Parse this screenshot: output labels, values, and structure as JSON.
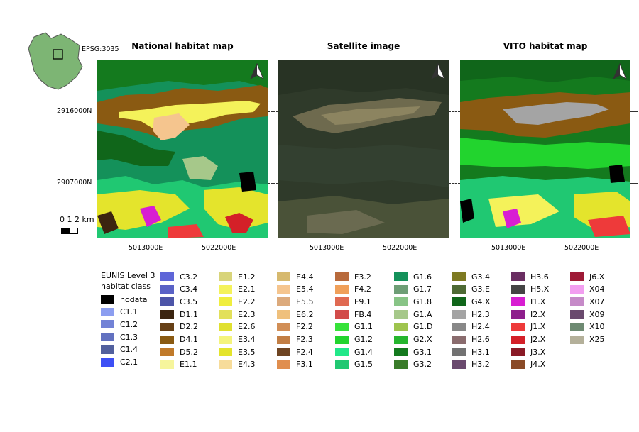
{
  "inset": {
    "epsg": "EPSG:3035"
  },
  "panels": [
    {
      "title": "National habitat map"
    },
    {
      "title": "Satellite image"
    },
    {
      "title": "VITO habitat map"
    }
  ],
  "y_ticks": [
    "2916000N",
    "2907000N"
  ],
  "x_ticks": [
    "5013000E",
    "5022000E"
  ],
  "scalebar": {
    "label": "0 1 2 km"
  },
  "legend": {
    "title_lines": [
      "EUNIS Level 3",
      "habitat class"
    ],
    "columns": [
      [
        {
          "code": "nodata",
          "color": "#000000"
        },
        {
          "code": "C1.1",
          "color": "#8c9ef0"
        },
        {
          "code": "C1.2",
          "color": "#7282d6"
        },
        {
          "code": "C1.3",
          "color": "#6271c0"
        },
        {
          "code": "C1.4",
          "color": "#52609e"
        },
        {
          "code": "C2.1",
          "color": "#3d4ff5"
        }
      ],
      [
        {
          "code": "C3.2",
          "color": "#5f66d8"
        },
        {
          "code": "C3.4",
          "color": "#5a62c6"
        },
        {
          "code": "C3.5",
          "color": "#4d55a8"
        },
        {
          "code": "D1.1",
          "color": "#3b2410"
        },
        {
          "code": "D2.2",
          "color": "#664016"
        },
        {
          "code": "D4.1",
          "color": "#8a5a12"
        },
        {
          "code": "D5.2",
          "color": "#c07a2a"
        },
        {
          "code": "E1.1",
          "color": "#f6f59c"
        }
      ],
      [
        {
          "code": "E1.2",
          "color": "#d8d47a"
        },
        {
          "code": "E2.1",
          "color": "#f4f25a"
        },
        {
          "code": "E2.2",
          "color": "#f0ee3e"
        },
        {
          "code": "E2.3",
          "color": "#e2e05a"
        },
        {
          "code": "E2.6",
          "color": "#e0e030"
        },
        {
          "code": "E3.4",
          "color": "#f4f47c"
        },
        {
          "code": "E3.5",
          "color": "#e4e42c"
        },
        {
          "code": "E4.3",
          "color": "#f7dc9a"
        }
      ],
      [
        {
          "code": "E4.4",
          "color": "#d6b96e"
        },
        {
          "code": "E5.4",
          "color": "#f5c58e"
        },
        {
          "code": "E5.5",
          "color": "#dcaa7c"
        },
        {
          "code": "E6.2",
          "color": "#efc07c"
        },
        {
          "code": "F2.2",
          "color": "#d18e56"
        },
        {
          "code": "F2.3",
          "color": "#c27e44"
        },
        {
          "code": "F2.4",
          "color": "#6e4422"
        },
        {
          "code": "F3.1",
          "color": "#e08e4e"
        }
      ],
      [
        {
          "code": "F3.2",
          "color": "#b86a3c"
        },
        {
          "code": "F4.2",
          "color": "#f0a05a"
        },
        {
          "code": "F9.1",
          "color": "#e06a52"
        },
        {
          "code": "FB.4",
          "color": "#d24c4a"
        },
        {
          "code": "G1.1",
          "color": "#36e23a"
        },
        {
          "code": "G1.2",
          "color": "#22d42e"
        },
        {
          "code": "G1.4",
          "color": "#22e889"
        },
        {
          "code": "G1.5",
          "color": "#20c872"
        }
      ],
      [
        {
          "code": "G1.6",
          "color": "#14915a"
        },
        {
          "code": "G1.7",
          "color": "#6e9e76"
        },
        {
          "code": "G1.8",
          "color": "#88c486"
        },
        {
          "code": "G1.A",
          "color": "#a6c88a"
        },
        {
          "code": "G1.D",
          "color": "#9ec44e"
        },
        {
          "code": "G2.X",
          "color": "#26b62e"
        },
        {
          "code": "G3.1",
          "color": "#147a1e"
        },
        {
          "code": "G3.2",
          "color": "#3a7c2a"
        }
      ],
      [
        {
          "code": "G3.4",
          "color": "#7e7a22"
        },
        {
          "code": "G3.E",
          "color": "#4e6a34"
        },
        {
          "code": "G4.X",
          "color": "#10661a"
        },
        {
          "code": "H2.3",
          "color": "#a4a4a4"
        },
        {
          "code": "H2.4",
          "color": "#888888"
        },
        {
          "code": "H2.6",
          "color": "#8a6c6e"
        },
        {
          "code": "H3.1",
          "color": "#727272"
        },
        {
          "code": "H3.2",
          "color": "#6a4a6e"
        }
      ],
      [
        {
          "code": "H3.6",
          "color": "#6a2e62"
        },
        {
          "code": "H5.X",
          "color": "#444444"
        },
        {
          "code": "I1.X",
          "color": "#d81ed2"
        },
        {
          "code": "I2.X",
          "color": "#8e1e8c"
        },
        {
          "code": "J1.X",
          "color": "#ee3a3a"
        },
        {
          "code": "J2.X",
          "color": "#d42028"
        },
        {
          "code": "J3.X",
          "color": "#8a1a26"
        },
        {
          "code": "J4.X",
          "color": "#8a4a26"
        }
      ],
      [
        {
          "code": "J6.X",
          "color": "#9e1a36"
        },
        {
          "code": "X04",
          "color": "#f29ef0"
        },
        {
          "code": "X07",
          "color": "#c68ac8"
        },
        {
          "code": "X09",
          "color": "#6a4a6e"
        },
        {
          "code": "X10",
          "color": "#6e8a72"
        },
        {
          "code": "X25",
          "color": "#b4b09a"
        }
      ]
    ]
  }
}
